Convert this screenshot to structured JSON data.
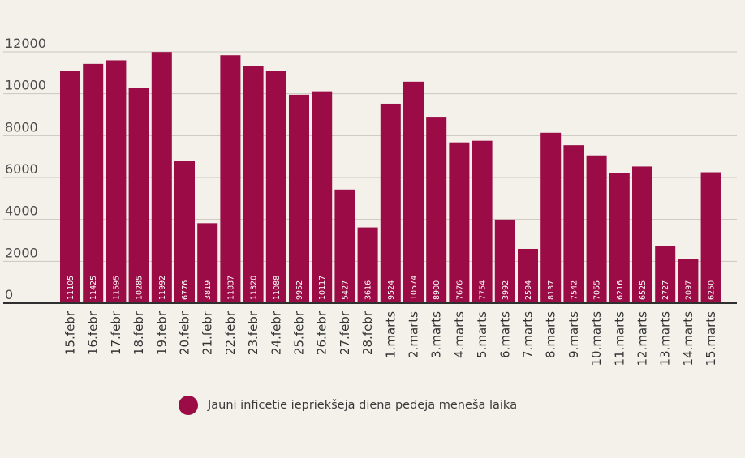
{
  "chart_data": {
    "type": "bar",
    "categories": [
      "15.febr",
      "16.febr",
      "17.febr",
      "18.febr",
      "19.febr",
      "20.febr",
      "21.febr",
      "22.febr",
      "23.febr",
      "24.febr",
      "25.febr",
      "26.febr",
      "27.febr",
      "28.febr",
      "1.marts",
      "2.marts",
      "3.marts",
      "4.marts",
      "5.marts",
      "6.marts",
      "7.marts",
      "8.marts",
      "9.marts",
      "10.marts",
      "11.marts",
      "12.marts",
      "13.marts",
      "14.marts",
      "15.marts"
    ],
    "data_labels": [
      "11105",
      "11425",
      "11595",
      "10285",
      "11992",
      "6776",
      "3819",
      "11837",
      "11320",
      "11088",
      "9952",
      "10117",
      "5427",
      "3616",
      "9524",
      "10574",
      "8900",
      "7676",
      "7754",
      "3992",
      "2594",
      "8137",
      "7542",
      "7055",
      "6216",
      "6525",
      "2727",
      "2097",
      "6250"
    ],
    "series": [
      {
        "name": "Jauni inficētie iepriekšējā dienā pēdējā mēneša laikā",
        "values": [
          11105,
          11425,
          11595,
          10285,
          11992,
          6776,
          3819,
          11837,
          11320,
          11088,
          9952,
          10117,
          5427,
          3616,
          9524,
          10574,
          8900,
          7676,
          7754,
          3992,
          2594,
          8137,
          7542,
          7055,
          6216,
          6525,
          2727,
          2097,
          6250
        ]
      }
    ],
    "yticks": [
      "12000",
      "10000",
      "8000",
      "6000",
      "4000",
      "2000",
      "0"
    ],
    "ylim": [
      0,
      12000
    ],
    "grid": true,
    "legend_position": "bottom"
  },
  "colors": {
    "bar": "#9b0b45",
    "grid": "#c8c6be",
    "axis": "#2f2f2f",
    "background": "#f3f1ea"
  }
}
